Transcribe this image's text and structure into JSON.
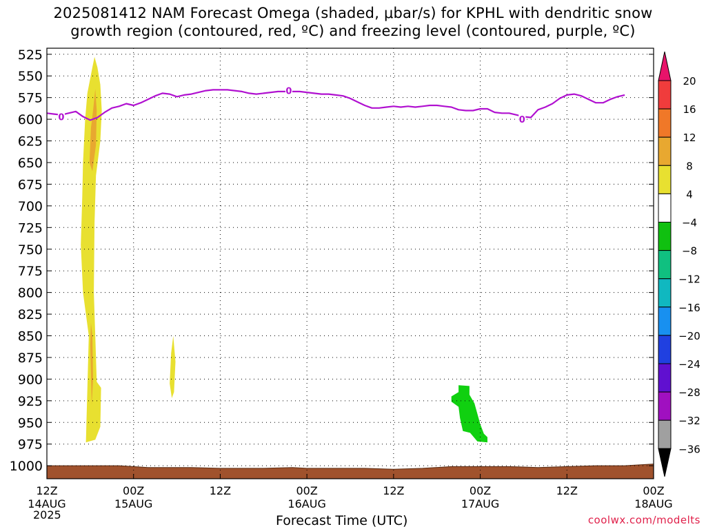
{
  "title_line1": "2025081412 NAM Forecast Omega (shaded, μbar/s) for KPHL with dendritic snow",
  "title_line2": "growth region (contoured, red, ºC) and freezing level (contoured, purple, ºC)",
  "credit": "coolwx.com/modelts",
  "chart_data": {
    "type": "heatmap",
    "title": "2025081412 NAM Forecast Omega (shaded, μbar/s) for KPHL with dendritic snow growth region (contoured, red, ºC) and freezing level (contoured, purple, ºC)",
    "xlabel": "Forecast Time (UTC)",
    "ylabel": "",
    "x_unit": "hours from 2025-08-14 12Z",
    "xlim": [
      0,
      84
    ],
    "ylim": [
      1015,
      518
    ],
    "y_ticks": [
      525,
      550,
      575,
      600,
      625,
      650,
      675,
      700,
      725,
      750,
      775,
      800,
      825,
      850,
      875,
      900,
      925,
      950,
      975,
      1000
    ],
    "x_ticks": [
      {
        "x": 0,
        "label": "12Z",
        "date": "14AUG",
        "year": "2025"
      },
      {
        "x": 12,
        "label": "00Z",
        "date": "15AUG"
      },
      {
        "x": 24,
        "label": "12Z"
      },
      {
        "x": 36,
        "label": "00Z",
        "date": "16AUG"
      },
      {
        "x": 48,
        "label": "12Z"
      },
      {
        "x": 60,
        "label": "00Z",
        "date": "17AUG"
      },
      {
        "x": 72,
        "label": "12Z"
      },
      {
        "x": 84,
        "label": "00Z",
        "date": "18AUG"
      }
    ],
    "grid": true,
    "colorbar": {
      "labels": [
        "20",
        "16",
        "12",
        "8",
        "4",
        "−4",
        "−8",
        "−12",
        "−16",
        "−20",
        "−24",
        "−28",
        "−32",
        "−36"
      ],
      "colors": [
        "#e8136a",
        "#f03c3c",
        "#f07828",
        "#e8a830",
        "#e8e030",
        "#ffffff",
        "#10c010",
        "#10c080",
        "#10b8c0",
        "#1890f0",
        "#2040e0",
        "#6010d0",
        "#a010c0",
        "#a0a0a0",
        "#000000"
      ]
    },
    "freezing_level": {
      "color": "#b010d0",
      "label": "0",
      "label_points": [
        [
          2,
          597
        ],
        [
          33.5,
          567
        ],
        [
          65.8,
          600
        ]
      ],
      "points": [
        [
          0,
          593
        ],
        [
          1,
          594
        ],
        [
          2,
          595
        ],
        [
          3,
          593
        ],
        [
          4,
          591
        ],
        [
          5,
          597
        ],
        [
          6,
          601
        ],
        [
          7,
          598
        ],
        [
          8,
          592
        ],
        [
          9,
          587
        ],
        [
          10,
          585
        ],
        [
          11,
          582
        ],
        [
          12,
          584
        ],
        [
          13,
          581
        ],
        [
          14,
          577
        ],
        [
          15,
          573
        ],
        [
          16,
          570
        ],
        [
          17,
          571
        ],
        [
          18,
          574
        ],
        [
          19,
          572
        ],
        [
          20,
          571
        ],
        [
          21,
          569
        ],
        [
          22,
          567
        ],
        [
          23,
          566
        ],
        [
          24,
          566
        ],
        [
          25,
          566
        ],
        [
          26,
          567
        ],
        [
          27,
          568
        ],
        [
          28,
          570
        ],
        [
          29,
          571
        ],
        [
          30,
          570
        ],
        [
          31,
          569
        ],
        [
          32,
          568
        ],
        [
          33,
          568
        ],
        [
          34,
          568
        ],
        [
          35,
          568
        ],
        [
          36,
          569
        ],
        [
          37,
          570
        ],
        [
          38,
          571
        ],
        [
          39,
          571
        ],
        [
          40,
          572
        ],
        [
          41,
          573
        ],
        [
          42,
          576
        ],
        [
          43,
          580
        ],
        [
          44,
          584
        ],
        [
          45,
          587
        ],
        [
          46,
          587
        ],
        [
          47,
          586
        ],
        [
          48,
          585
        ],
        [
          49,
          586
        ],
        [
          50,
          585
        ],
        [
          51,
          586
        ],
        [
          52,
          585
        ],
        [
          53,
          584
        ],
        [
          54,
          584
        ],
        [
          55,
          585
        ],
        [
          56,
          586
        ],
        [
          57,
          589
        ],
        [
          58,
          590
        ],
        [
          59,
          590
        ],
        [
          60,
          588
        ],
        [
          61,
          588
        ],
        [
          62,
          592
        ],
        [
          63,
          593
        ],
        [
          64,
          593
        ],
        [
          65,
          595
        ],
        [
          66,
          597
        ],
        [
          67,
          598
        ],
        [
          68,
          589
        ],
        [
          69,
          586
        ],
        [
          70,
          582
        ],
        [
          71,
          576
        ],
        [
          72,
          572
        ],
        [
          73,
          571
        ],
        [
          74,
          573
        ],
        [
          75,
          577
        ],
        [
          76,
          581
        ],
        [
          77,
          581
        ],
        [
          78,
          577
        ],
        [
          79,
          574
        ],
        [
          80,
          572
        ]
      ]
    },
    "omega_regions": [
      {
        "value_min": 4,
        "color": "#e8e030",
        "polygon": [
          [
            5.4,
            973
          ],
          [
            5.8,
            850
          ],
          [
            5.0,
            800
          ],
          [
            4.7,
            745
          ],
          [
            4.9,
            690
          ],
          [
            5.0,
            650
          ],
          [
            5.3,
            600
          ],
          [
            5.6,
            570
          ],
          [
            6.3,
            540
          ],
          [
            6.6,
            528
          ],
          [
            7.0,
            540
          ],
          [
            7.4,
            560
          ],
          [
            7.6,
            590
          ],
          [
            7.4,
            625
          ],
          [
            6.8,
            665
          ],
          [
            6.6,
            720
          ],
          [
            6.5,
            800
          ],
          [
            6.7,
            850
          ],
          [
            6.9,
            903
          ],
          [
            7.5,
            910
          ],
          [
            7.4,
            955
          ],
          [
            6.7,
            970
          ]
        ]
      },
      {
        "value_min": 8,
        "color": "#e8a830",
        "polygon": [
          [
            5.9,
            650
          ],
          [
            6.1,
            610
          ],
          [
            6.4,
            590
          ],
          [
            6.7,
            565
          ],
          [
            6.9,
            590
          ],
          [
            6.8,
            630
          ],
          [
            6.3,
            660
          ]
        ]
      },
      {
        "value_min": 8,
        "color": "#e8a830",
        "polygon": [
          [
            6.0,
            860
          ],
          [
            6.2,
            930
          ],
          [
            6.4,
            900
          ],
          [
            6.3,
            850
          ],
          [
            6.1,
            835
          ]
        ]
      },
      {
        "value_min": 4,
        "color": "#e8e030",
        "polygon": [
          [
            17.0,
            905
          ],
          [
            17.2,
            870
          ],
          [
            17.5,
            850
          ],
          [
            17.8,
            880
          ],
          [
            17.6,
            915
          ],
          [
            17.3,
            922
          ]
        ]
      },
      {
        "value_max": -4,
        "color": "#10d010",
        "polygon": [
          [
            56.0,
            920
          ],
          [
            57.0,
            915
          ],
          [
            57.0,
            907
          ],
          [
            58.5,
            908
          ],
          [
            58.5,
            918
          ],
          [
            59.2,
            928
          ],
          [
            59.6,
            940
          ],
          [
            60.0,
            952
          ],
          [
            60.5,
            963
          ],
          [
            61.0,
            967
          ],
          [
            61.0,
            973
          ],
          [
            59.6,
            972
          ],
          [
            58.6,
            962
          ],
          [
            57.6,
            960
          ],
          [
            57.2,
            945
          ],
          [
            57.0,
            932
          ],
          [
            56.0,
            926
          ]
        ]
      }
    ],
    "surface_pressure": {
      "color": "#a0522d",
      "points": [
        [
          0,
          1000
        ],
        [
          10,
          1000
        ],
        [
          12,
          1001
        ],
        [
          14,
          1002
        ],
        [
          20,
          1002
        ],
        [
          24,
          1003
        ],
        [
          30,
          1003
        ],
        [
          34,
          1002
        ],
        [
          36,
          1003
        ],
        [
          44,
          1003
        ],
        [
          48,
          1004
        ],
        [
          52,
          1003
        ],
        [
          56,
          1001
        ],
        [
          60,
          1001
        ],
        [
          64,
          1001
        ],
        [
          68,
          1002
        ],
        [
          72,
          1001
        ],
        [
          76,
          1000
        ],
        [
          80,
          1000
        ],
        [
          82,
          999
        ],
        [
          84,
          998
        ]
      ]
    }
  }
}
